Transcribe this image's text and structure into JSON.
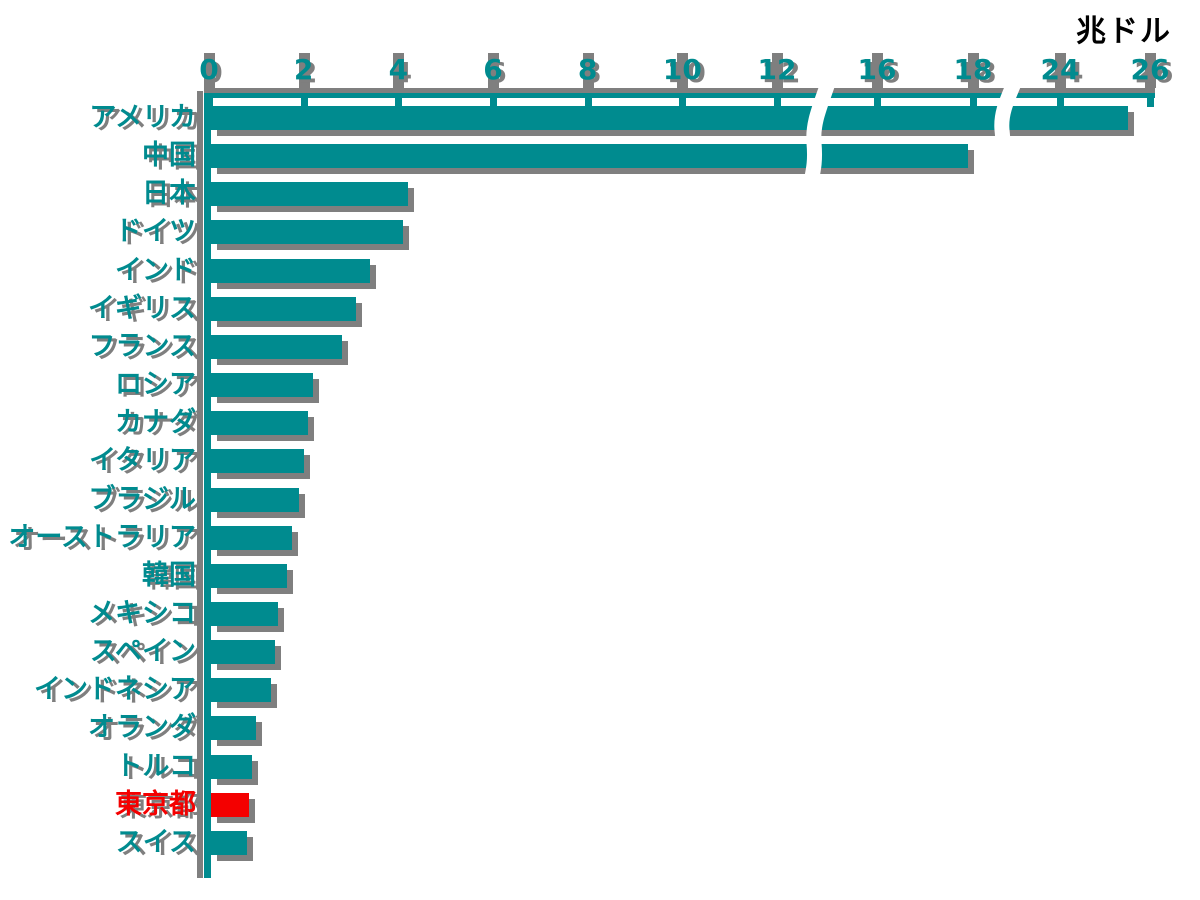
{
  "chart_data": {
    "type": "bar",
    "orientation": "horizontal",
    "title": "",
    "unit_label": "兆ドル",
    "categories": [
      "アメリカ",
      "中国",
      "日本",
      "ドイツ",
      "インド",
      "イギリス",
      "フランス",
      "ロシア",
      "カナダ",
      "イタリア",
      "ブラジル",
      "オーストラリア",
      "韓国",
      "メキシコ",
      "スペイン",
      "インドネシア",
      "オランダ",
      "トルコ",
      "東京都",
      "スイス"
    ],
    "values": [
      25.5,
      17.9,
      4.2,
      4.1,
      3.4,
      3.1,
      2.8,
      2.2,
      2.1,
      2.0,
      1.9,
      1.75,
      1.65,
      1.45,
      1.4,
      1.3,
      1.0,
      0.9,
      0.85,
      0.8
    ],
    "highlight": {
      "category": "東京都",
      "index": 18,
      "color": "#f40000"
    },
    "bar_color": "#008b8f",
    "shadow_color": "#7f7f7f",
    "background_color": "#ffffff",
    "xaxis": {
      "position": "top",
      "ticks": [
        0,
        2,
        4,
        6,
        8,
        10,
        12,
        16,
        18,
        24,
        26
      ],
      "breaks": [
        [
          12,
          16
        ],
        [
          18,
          24
        ]
      ],
      "range": [
        0,
        26
      ]
    },
    "legend": "none",
    "grid": "off"
  }
}
